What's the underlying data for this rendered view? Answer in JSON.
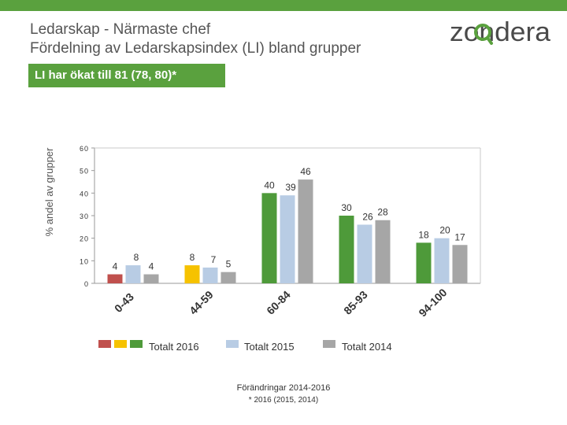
{
  "header": {
    "title_line1": "Ledarskap - Närmaste chef",
    "title_line2": "Fördelning av Ledarskapsindex (LI) bland grupper",
    "brand": "zondera"
  },
  "callout": "LI har ökat till 81 (78, 80)*",
  "colors": {
    "brand_green": "#5aa13e",
    "red_2016": "#c0504d",
    "yellow_2016": "#f6c200",
    "green_2016": "#4e9a3a",
    "blue_2015": "#b8cce4",
    "gray_2014": "#a6a6a6"
  },
  "legend": {
    "s2016": "Totalt 2016",
    "s2015": "Totalt 2015",
    "s2014": "Totalt 2014"
  },
  "footer": {
    "line1": "Förändringar 2014-2016",
    "line2": "* 2016 (2015, 2014)"
  },
  "chart_data": {
    "type": "bar",
    "ylabel": "% andel av grupper",
    "ylim": [
      0,
      60
    ],
    "yticks": [
      0,
      10,
      20,
      30,
      40,
      50,
      60
    ],
    "grid": false,
    "legend_position": "bottom",
    "categories": [
      "0-43",
      "44-59",
      "60-84",
      "85-93",
      "94-100"
    ],
    "series": [
      {
        "name": "Totalt 2016",
        "values": [
          4,
          8,
          40,
          30,
          18
        ],
        "colors": [
          "#c0504d",
          "#f6c200",
          "#4e9a3a",
          "#4e9a3a",
          "#4e9a3a"
        ]
      },
      {
        "name": "Totalt 2015",
        "values": [
          8,
          7,
          39,
          26,
          20
        ],
        "color": "#b8cce4"
      },
      {
        "name": "Totalt 2014",
        "values": [
          4,
          5,
          46,
          28,
          17
        ],
        "color": "#a6a6a6"
      }
    ]
  }
}
